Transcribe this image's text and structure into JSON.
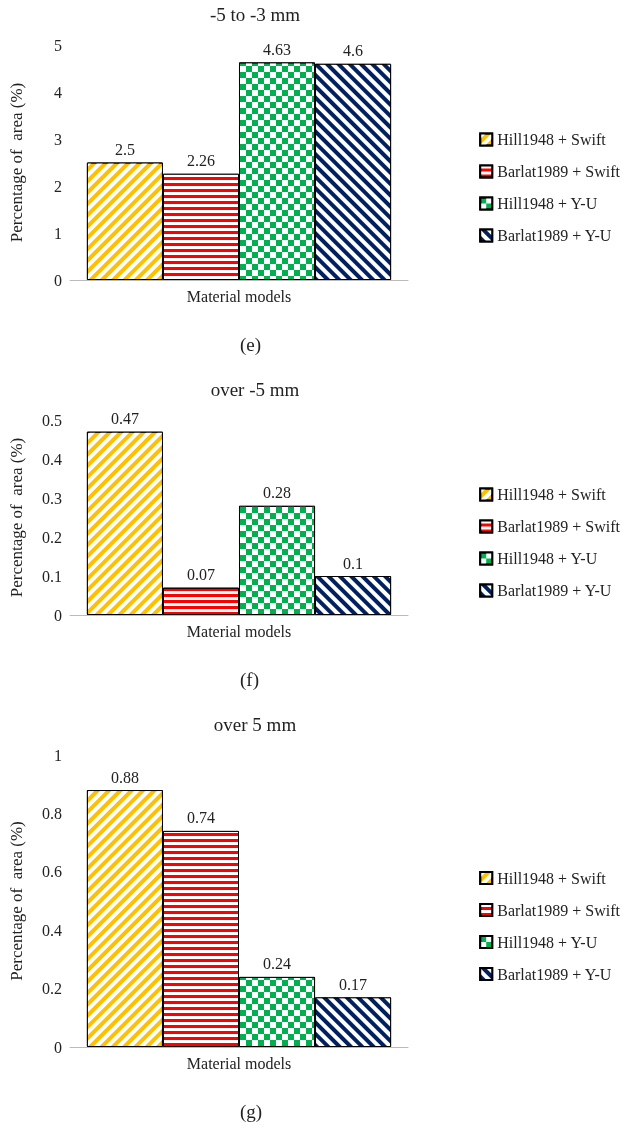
{
  "chart_data": [
    {
      "type": "bar",
      "title": "-5 to -3 mm",
      "ylabel": "Percentage of  area (%)",
      "categories": [
        "Material models"
      ],
      "series": [
        {
          "name": "Hill1948 + Swift",
          "color": "#ffc000",
          "values": [
            2.5
          ]
        },
        {
          "name": "Barlat1989 + Swift",
          "color": "#ff0000",
          "values": [
            2.26
          ]
        },
        {
          "name": "Hill1948 + Y-U",
          "color": "#00b050",
          "values": [
            4.63
          ]
        },
        {
          "name": "Barlat1989 + Y-U",
          "color": "#002060",
          "values": [
            4.6
          ]
        }
      ],
      "ylim": [
        0,
        5
      ],
      "yticks": [
        0,
        1,
        2,
        3,
        4,
        5
      ],
      "grid": false,
      "legend": "right",
      "data_labels": true,
      "annotations": [
        "(e)"
      ]
    },
    {
      "type": "bar",
      "title": "over -5 mm",
      "ylabel": "Percentage of  area (%)",
      "categories": [
        "Material models"
      ],
      "series": [
        {
          "name": "Hill1948 + Swift",
          "color": "#ffc000",
          "values": [
            0.47
          ]
        },
        {
          "name": "Barlat1989 + Swift",
          "color": "#ff0000",
          "values": [
            0.07
          ]
        },
        {
          "name": "Hill1948 + Y-U",
          "color": "#00b050",
          "values": [
            0.28
          ]
        },
        {
          "name": "Barlat1989 + Y-U",
          "color": "#002060",
          "values": [
            0.1
          ]
        }
      ],
      "ylim": [
        0,
        0.5
      ],
      "yticks": [
        0,
        0.1,
        0.2,
        0.3,
        0.4,
        0.5
      ],
      "grid": false,
      "legend": "right",
      "data_labels": true,
      "annotations": [
        "(f)"
      ]
    },
    {
      "type": "bar",
      "title": "over 5 mm",
      "ylabel": "Percentage of  area (%)",
      "categories": [
        "Material models"
      ],
      "series": [
        {
          "name": "Hill1948 + Swift",
          "color": "#ffc000",
          "values": [
            0.88
          ]
        },
        {
          "name": "Barlat1989 + Swift",
          "color": "#ff0000",
          "values": [
            0.74
          ]
        },
        {
          "name": "Hill1948 + Y-U",
          "color": "#00b050",
          "values": [
            0.24
          ]
        },
        {
          "name": "Barlat1989 + Y-U",
          "color": "#002060",
          "values": [
            0.17
          ]
        }
      ],
      "ylim": [
        0,
        1
      ],
      "yticks": [
        0,
        0.2,
        0.4,
        0.6,
        0.8,
        1
      ],
      "grid": false,
      "legend": "right",
      "data_labels": true,
      "annotations": [
        "(g)"
      ]
    }
  ]
}
